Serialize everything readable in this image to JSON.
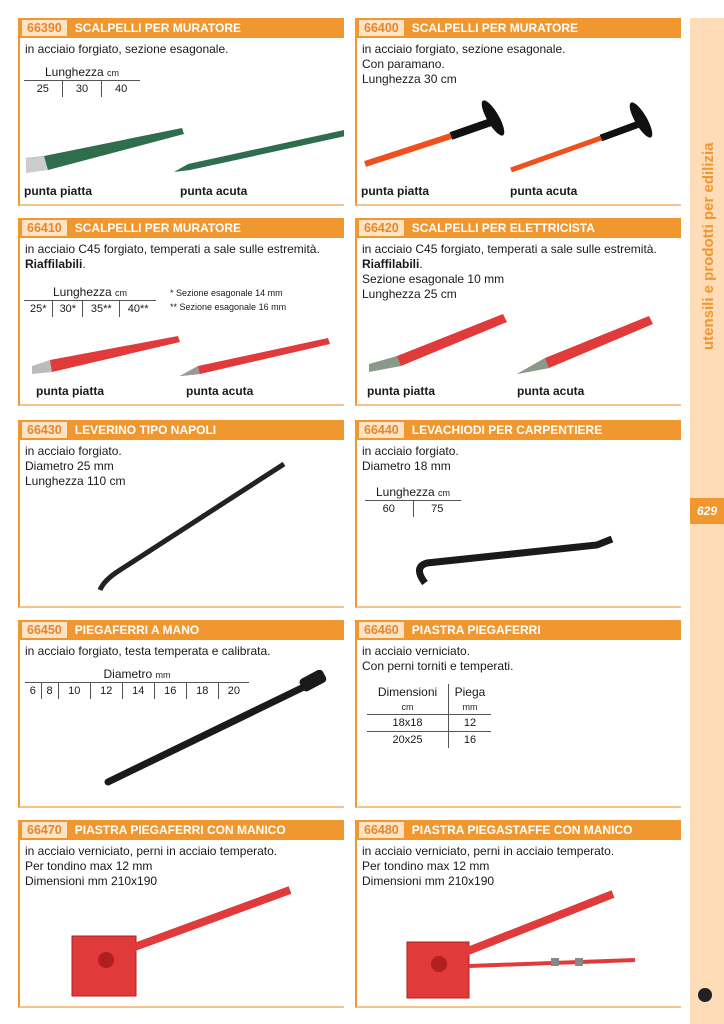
{
  "sidebar": {
    "title": "utensili e prodotti per edilizia",
    "page_number": "629",
    "logo_icon": "copyright-c-logo"
  },
  "colors": {
    "accent": "#f0972f",
    "code_bg": "#fde3c6",
    "sidebar_bg": "#fddcb7"
  },
  "products": [
    {
      "code": "66390",
      "title": "SCALPELLI PER MURATORE",
      "desc": [
        "in acciaio forgiato, sezione esagonale."
      ],
      "table": {
        "header": "Lunghezza",
        "unit": "cm",
        "values": [
          "25",
          "30",
          "40"
        ]
      },
      "captions": [
        "punta piatta",
        "punta acuta"
      ]
    },
    {
      "code": "66400",
      "title": "SCALPELLI PER MURATORE",
      "desc": [
        "in acciaio forgiato, sezione esagonale.",
        "Con paramano.",
        "Lunghezza 30 cm"
      ],
      "captions": [
        "punta piatta",
        "punta acuta"
      ]
    },
    {
      "code": "66410",
      "title": "SCALPELLI PER MURATORE",
      "desc": [
        "in acciaio C45 forgiato, temperati a sale sulle estremità."
      ],
      "bold": "Riaffilabili",
      "table": {
        "header": "Lunghezza",
        "unit": "cm",
        "values": [
          "25*",
          "30*",
          "35**",
          "40**"
        ]
      },
      "notes": [
        "* Sezione esagonale 14 mm",
        "** Sezione esagonale 16 mm"
      ],
      "captions": [
        "punta piatta",
        "punta acuta"
      ]
    },
    {
      "code": "66420",
      "title": "SCALPELLI PER ELETTRICISTA",
      "desc": [
        "in acciaio C45 forgiato, temperati a sale sulle estremità."
      ],
      "bold": "Riaffilabili",
      "desc2": [
        "Sezione esagonale 10 mm",
        "Lunghezza 25 cm"
      ],
      "captions": [
        "punta piatta",
        "punta acuta"
      ]
    },
    {
      "code": "66430",
      "title": "LEVERINO TIPO NAPOLI",
      "desc": [
        "in acciaio forgiato.",
        "Diametro 25 mm",
        "Lunghezza 110 cm"
      ]
    },
    {
      "code": "66440",
      "title": "LEVACHIODI PER CARPENTIERE",
      "desc": [
        "in acciaio forgiato.",
        "Diametro 18 mm"
      ],
      "table": {
        "header": "Lunghezza",
        "unit": "cm",
        "values": [
          "60",
          "75"
        ]
      }
    },
    {
      "code": "66450",
      "title": "PIEGAFERRI A MANO",
      "desc": [
        "in acciaio forgiato, testa temperata e calibrata."
      ],
      "table": {
        "header": "Diametro",
        "unit": "mm",
        "values": [
          "6",
          "8",
          "10",
          "12",
          "14",
          "16",
          "18",
          "20"
        ]
      }
    },
    {
      "code": "66460",
      "title": "PIASTRA PIEGAFERRI",
      "desc": [
        "in acciaio verniciato.",
        "Con perni torniti e temperati."
      ],
      "table2": {
        "col1": "Dimensioni",
        "col1_unit": "cm",
        "col2": "Piega",
        "col2_unit": "mm",
        "rows": [
          [
            "18x18",
            "12"
          ],
          [
            "20x25",
            "16"
          ]
        ]
      }
    },
    {
      "code": "66470",
      "title": "PIASTRA PIEGAFERRI CON MANICO",
      "desc": [
        "in acciaio verniciato, perni in acciaio temperato.",
        "Per tondino max 12 mm",
        "Dimensioni mm 210x190"
      ]
    },
    {
      "code": "66480",
      "title": "PIASTRA PIEGASTAFFE CON MANICO",
      "desc": [
        "in acciaio verniciato, perni in acciaio temperato.",
        "Per tondino max 12 mm",
        "Dimensioni mm 210x190"
      ]
    }
  ]
}
